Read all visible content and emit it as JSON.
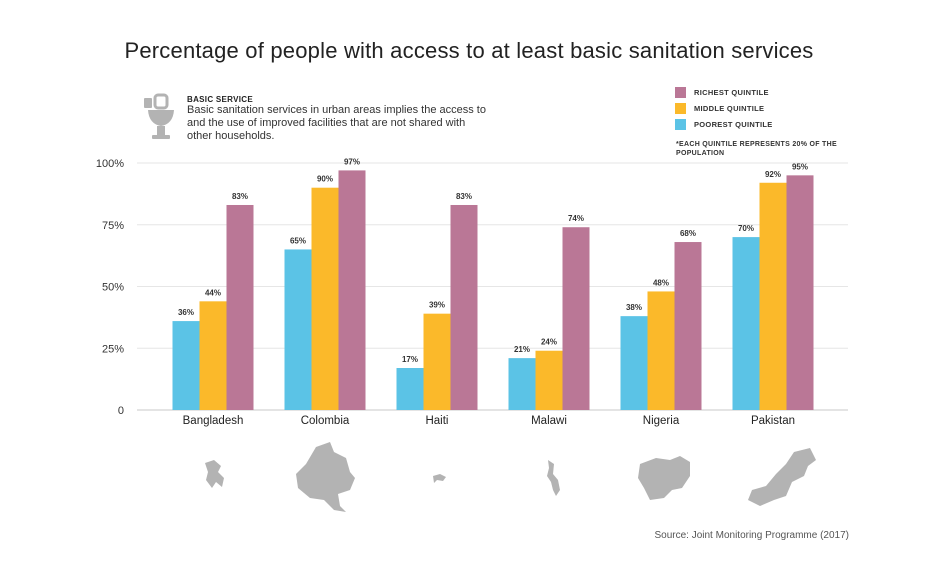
{
  "title": "Percentage of people with access to at least basic sanitation services",
  "basic": {
    "title": "BASIC SERVICE",
    "text": "Basic sanitation services in urban areas implies the access to and the use of improved facilities that are not shared with other households.",
    "icon": "toilet-icon"
  },
  "legend_note": "*EACH QUINTILE REPRESENTS 20% OF THE POPULATION",
  "source": "Source: Joint Monitoring Programme (2017)",
  "colors": {
    "poorest": "#5bc3e6",
    "middle": "#fbb92a",
    "richest": "#ba7796",
    "grid": "#e6e6e6",
    "map": "#b3b3b3"
  },
  "chart_data": {
    "type": "bar",
    "title": "Percentage of people with access to at least basic sanitation services",
    "categories": [
      "Bangladesh",
      "Colombia",
      "Haiti",
      "Malawi",
      "Nigeria",
      "Pakistan"
    ],
    "series": [
      {
        "name": "POOREST QUINTILE",
        "values": [
          36,
          65,
          17,
          21,
          38,
          70
        ]
      },
      {
        "name": "MIDDLE QUINTILE",
        "values": [
          44,
          90,
          39,
          24,
          48,
          92
        ]
      },
      {
        "name": "RICHEST QUINTILE",
        "values": [
          83,
          97,
          83,
          74,
          68,
          95
        ]
      }
    ],
    "legend_order": [
      "RICHEST QUINTILE",
      "MIDDLE QUINTILE",
      "POOREST QUINTILE"
    ],
    "y_ticks": [
      "0",
      "25%",
      "50%",
      "75%",
      "100%"
    ],
    "y_tick_values": [
      0,
      25,
      50,
      75,
      100
    ],
    "ylim": [
      0,
      100
    ],
    "value_suffix": "%",
    "grid": true,
    "legend_position": "top-right",
    "maps": [
      "bangladesh-map",
      "colombia-map",
      "haiti-map",
      "malawi-map",
      "nigeria-map",
      "pakistan-map"
    ]
  }
}
